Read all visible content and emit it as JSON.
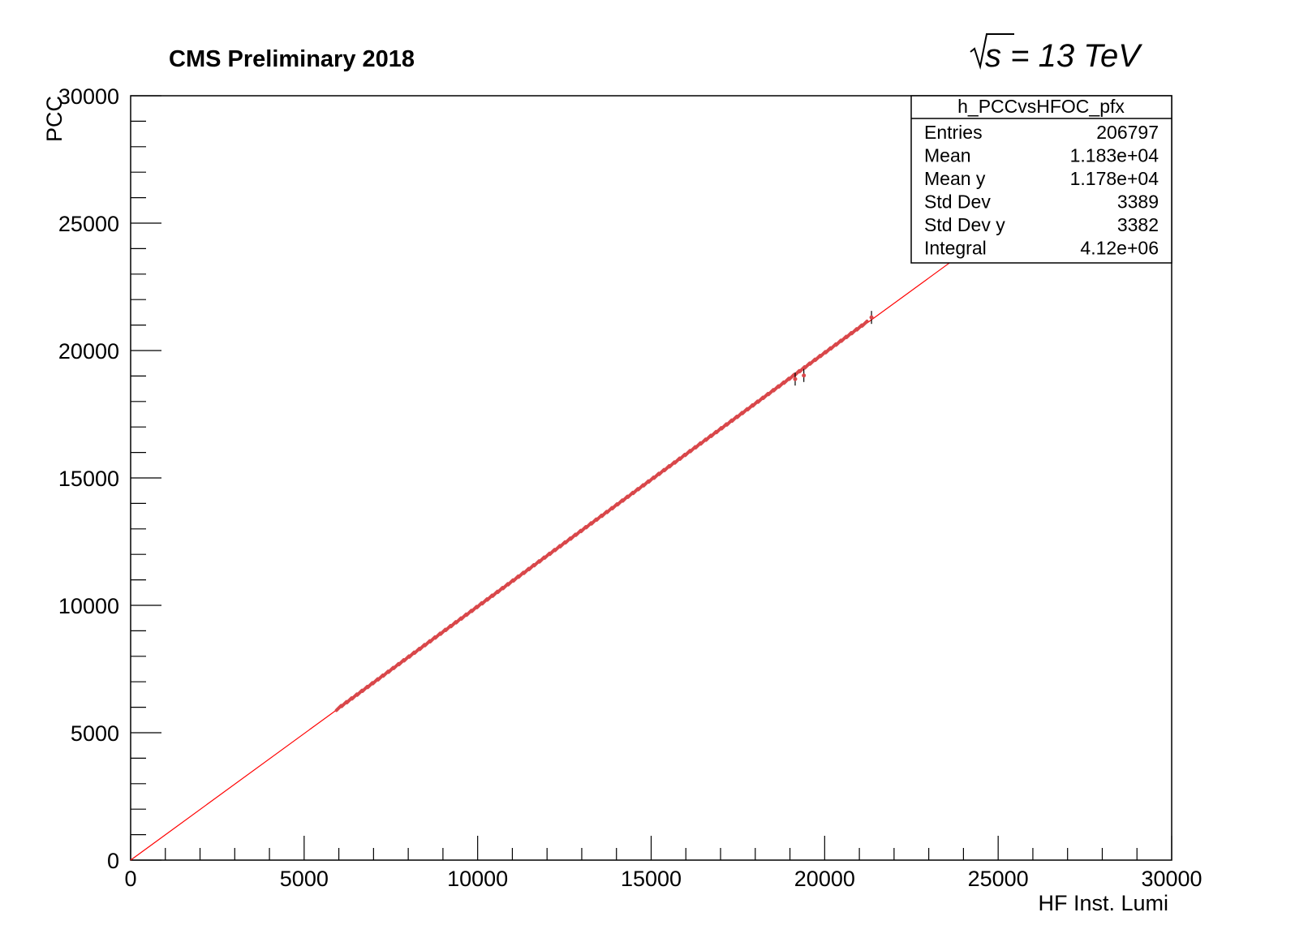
{
  "header": {
    "title": "CMS Preliminary 2018",
    "energy_s": "s",
    "energy_rest": " = 13 TeV"
  },
  "stats": {
    "name": "h_PCCvsHFOC_pfx",
    "rows": [
      {
        "label": "Entries",
        "value": "206797"
      },
      {
        "label": "Mean",
        "value": "1.183e+04"
      },
      {
        "label": "Mean y",
        "value": "1.178e+04"
      },
      {
        "label": "Std Dev",
        "value": "3389"
      },
      {
        "label": "Std Dev y",
        "value": "3382"
      },
      {
        "label": "Integral",
        "value": "4.12e+06"
      }
    ]
  },
  "colors": {
    "fit_line": "#ff0000",
    "data_points": "#d9474a",
    "axis": "#000000"
  },
  "chart_data": {
    "type": "scatter",
    "title": "CMS Preliminary 2018",
    "xlabel": "HF Inst. Lumi",
    "ylabel": "PCC",
    "xlim": [
      0,
      30000
    ],
    "ylim": [
      0,
      30000
    ],
    "x_ticks": [
      0,
      5000,
      10000,
      15000,
      20000,
      25000,
      30000
    ],
    "y_ticks": [
      0,
      5000,
      10000,
      15000,
      20000,
      25000,
      30000
    ],
    "grid": false,
    "legend": "stats box top-right",
    "series": [
      {
        "name": "h_PCCvsHFOC_pfx",
        "x_start": 6000,
        "x_end": 21200,
        "x_step": 150,
        "slope": 0.9955,
        "intercept": 0
      }
    ],
    "outliers": [
      {
        "x": 19150,
        "y": 18880
      },
      {
        "x": 19400,
        "y": 19020
      },
      {
        "x": 21350,
        "y": 21300
      }
    ],
    "fit": {
      "x": [
        0,
        30000
      ],
      "y": [
        0,
        29800
      ]
    }
  }
}
